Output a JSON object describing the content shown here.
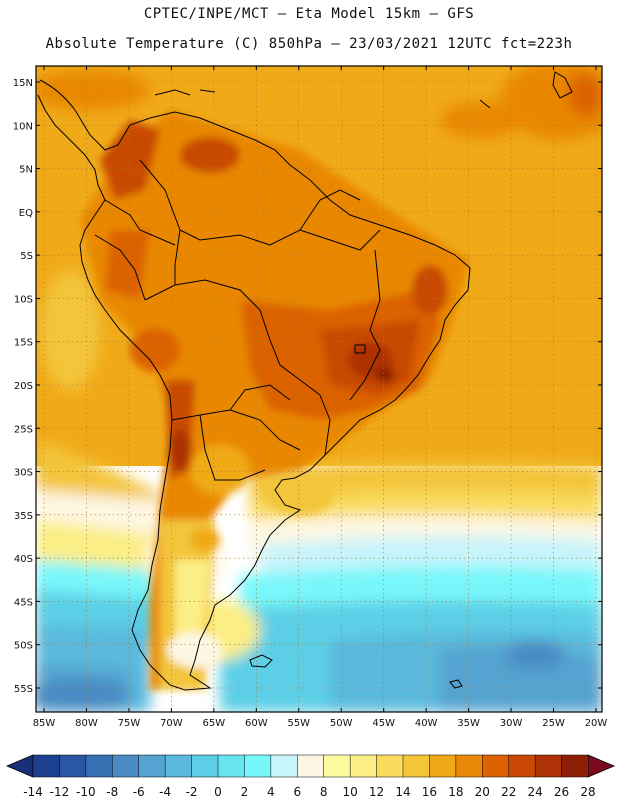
{
  "title_line1": "CPTEC/INPE/MCT –  Eta Model 15km – GFS",
  "title_line2": "Absolute Temperature (C) 850hPa – 23/03/2021 12UTC fct=223h",
  "lat_labels": [
    "15N",
    "10N",
    "5N",
    "EQ",
    "5S",
    "10S",
    "15S",
    "20S",
    "25S",
    "30S",
    "35S",
    "40S",
    "45S",
    "50S",
    "55S"
  ],
  "lat_values": [
    15,
    10,
    5,
    0,
    -5,
    -10,
    -15,
    -20,
    -25,
    -30,
    -35,
    -40,
    -45,
    -50,
    -55
  ],
  "lon_labels": [
    "85W",
    "80W",
    "75W",
    "70W",
    "65W",
    "60W",
    "55W",
    "50W",
    "45W",
    "40W",
    "35W",
    "30W",
    "25W",
    "20W"
  ],
  "lon_values": [
    -85,
    -80,
    -75,
    -70,
    -65,
    -60,
    -55,
    -50,
    -45,
    -40,
    -35,
    -30,
    -25,
    -20
  ],
  "colorbar": {
    "labels": [
      "-14",
      "-12",
      "-10",
      "-8",
      "-6",
      "-4",
      "-2",
      "0",
      "2",
      "4",
      "6",
      "8",
      "10",
      "12",
      "14",
      "16",
      "18",
      "20",
      "22",
      "24",
      "26",
      "28"
    ],
    "colors": [
      "#1c3f8f",
      "#2a56a3",
      "#3870b4",
      "#4a8ac4",
      "#55a3d0",
      "#5ab9dc",
      "#5ccfe6",
      "#66e4f0",
      "#78f7fa",
      "#c8f4fb",
      "#fdf6e2",
      "#fdfaa0",
      "#fbee84",
      "#f9dc5e",
      "#f3c53a",
      "#f0aa18",
      "#e98806",
      "#dc6204",
      "#c84804",
      "#ad3206",
      "#8c2006"
    ],
    "under_color": "#1a2f7a",
    "over_color": "#7a0a1e"
  }
}
